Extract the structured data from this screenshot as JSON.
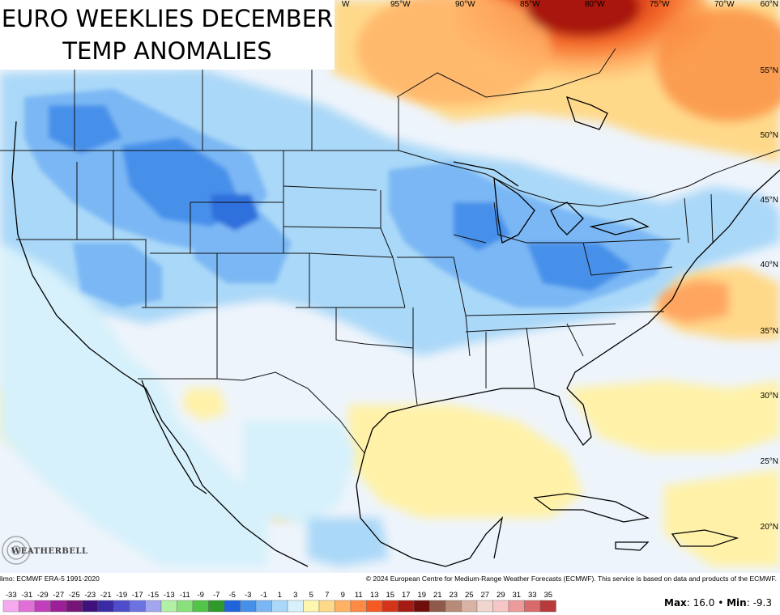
{
  "title": {
    "line1": "EURO WEEKLIES DECEMBER",
    "line2": "TEMP ANOMALIES"
  },
  "lon_labels": [
    "W",
    "95°W",
    "90°W",
    "85°W",
    "80°W",
    "75°W",
    "70°W"
  ],
  "lat_labels": [
    "60°N",
    "55°N",
    "50°N",
    "45°N",
    "40°N",
    "35°N",
    "30°N",
    "25°N",
    "20°N"
  ],
  "footer": {
    "climo": "limo: ECMWF ERA-5 1991-2020",
    "copyright": "© 2024 European Centre for Medium-Range Weather Forecasts (ECMWF). This service is based on data and products of the ECMWF."
  },
  "logo": {
    "text": "WEATHERBELL",
    "icon": "swirl-logo-icon"
  },
  "legend": {
    "values": [
      -33,
      -31,
      -29,
      -27,
      -25,
      -23,
      -21,
      -19,
      -17,
      -15,
      -13,
      -11,
      -9,
      -7,
      -5,
      -3,
      -1,
      1,
      3,
      5,
      7,
      9,
      11,
      13,
      15,
      17,
      19,
      21,
      23,
      25,
      27,
      29,
      31,
      33,
      35
    ],
    "colors": [
      "#f7a9f0",
      "#e070d8",
      "#c23fbb",
      "#9c1f98",
      "#761577",
      "#3f117c",
      "#3a2aa4",
      "#4f4ccb",
      "#6c73e0",
      "#a1a6ef",
      "#b2f0a6",
      "#8ae07c",
      "#52c448",
      "#2f9a2b",
      "#1f64db",
      "#4690ea",
      "#7ab7f4",
      "#aad8f8",
      "#d6f1fb",
      "#fff7b0",
      "#ffd98a",
      "#ffb166",
      "#ff8a43",
      "#f55a22",
      "#d4351a",
      "#a31b12",
      "#6e0f0b",
      "#8f5a4a",
      "#b88a78",
      "#d8b2a4",
      "#efd6cf",
      "#f7c6c6",
      "#ec9a9a",
      "#d86a6a",
      "#b83a3a"
    ]
  },
  "stats": {
    "max_label": "Max",
    "max_value": "16.0",
    "separator": "•",
    "min_label": "Min",
    "min_value": "-9.3"
  }
}
